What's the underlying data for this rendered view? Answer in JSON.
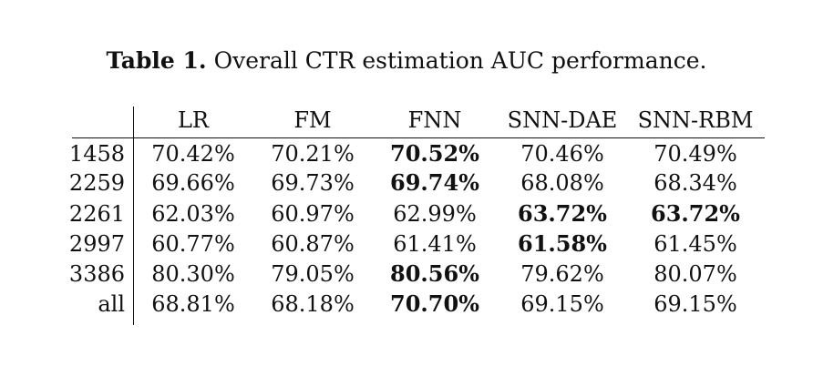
{
  "caption": {
    "label": "Table 1.",
    "text": "Overall CTR estimation AUC performance."
  },
  "table": {
    "columns": [
      "LR",
      "FM",
      "FNN",
      "SNN-DAE",
      "SNN-RBM"
    ],
    "rows": [
      {
        "label": "1458",
        "values": [
          "70.42%",
          "70.21%",
          "70.52%",
          "70.46%",
          "70.49%"
        ],
        "bold": [
          false,
          false,
          true,
          false,
          false
        ]
      },
      {
        "label": "2259",
        "values": [
          "69.66%",
          "69.73%",
          "69.74%",
          "68.08%",
          "68.34%"
        ],
        "bold": [
          false,
          false,
          true,
          false,
          false
        ]
      },
      {
        "label": "2261",
        "values": [
          "62.03%",
          "60.97%",
          "62.99%",
          "63.72%",
          "63.72%"
        ],
        "bold": [
          false,
          false,
          false,
          true,
          true
        ]
      },
      {
        "label": "2997",
        "values": [
          "60.77%",
          "60.87%",
          "61.41%",
          "61.58%",
          "61.45%"
        ],
        "bold": [
          false,
          false,
          false,
          true,
          false
        ]
      },
      {
        "label": "3386",
        "values": [
          "80.30%",
          "79.05%",
          "80.56%",
          "79.62%",
          "80.07%"
        ],
        "bold": [
          false,
          false,
          true,
          false,
          false
        ]
      },
      {
        "label": "all",
        "values": [
          "68.81%",
          "68.18%",
          "70.70%",
          "69.15%",
          "69.15%"
        ],
        "bold": [
          false,
          false,
          true,
          false,
          false
        ]
      }
    ]
  }
}
